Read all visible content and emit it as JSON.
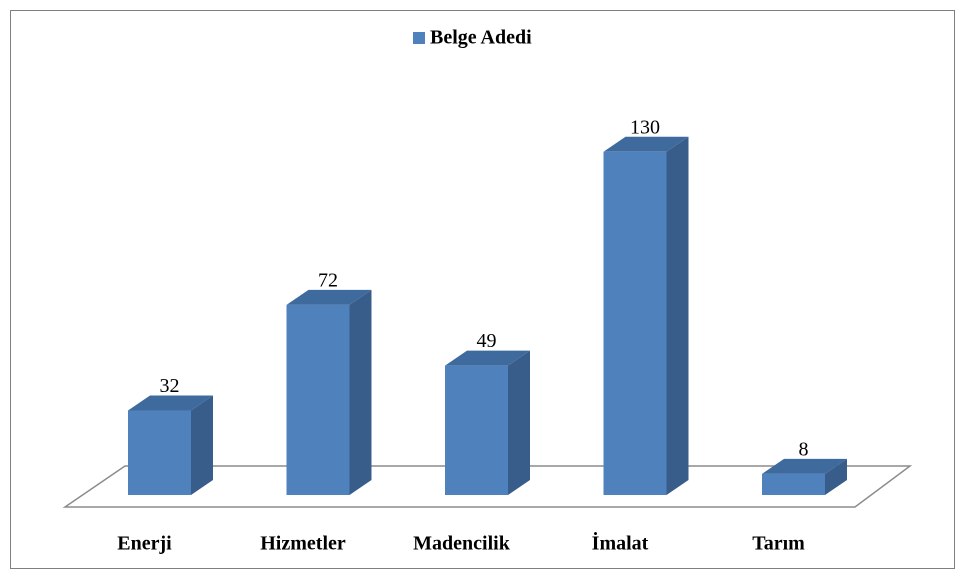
{
  "chart_data": {
    "type": "bar3d",
    "categories": [
      "Enerji",
      "Hizmetler",
      "Madencilik",
      "İmalat",
      "Tarım"
    ],
    "series": [
      {
        "name": "Belge Adedi",
        "color": "#4f81bd",
        "values": [
          32,
          72,
          49,
          130,
          8
        ]
      }
    ]
  }
}
